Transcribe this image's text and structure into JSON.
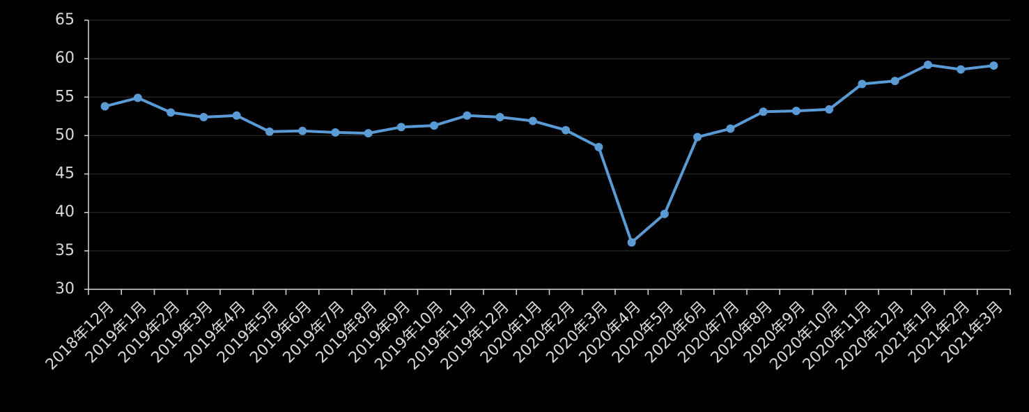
{
  "chart_data": {
    "type": "line",
    "categories": [
      "2018年12月",
      "2019年1月",
      "2019年2月",
      "2019年3月",
      "2019年4月",
      "2019年5月",
      "2019年6月",
      "2019年7月",
      "2019年8月",
      "2019年9月",
      "2019年10月",
      "2019年11月",
      "2019年12月",
      "2020年1月",
      "2020年2月",
      "2020年3月",
      "2020年4月",
      "2020年5月",
      "2020年6月",
      "2020年7月",
      "2020年8月",
      "2020年9月",
      "2020年10月",
      "2020年11月",
      "2020年12月",
      "2021年1月",
      "2021年2月",
      "2021年3月"
    ],
    "values": [
      53.8,
      54.9,
      53.0,
      52.4,
      52.6,
      50.5,
      50.6,
      50.4,
      50.3,
      51.1,
      51.3,
      52.6,
      52.4,
      51.9,
      50.7,
      48.5,
      36.1,
      39.8,
      49.8,
      50.9,
      53.1,
      53.2,
      53.4,
      56.7,
      57.1,
      59.2,
      58.6,
      59.1
    ],
    "color": "#5b9bd5",
    "ylim": [
      30,
      65
    ],
    "yticks": [
      30,
      35,
      40,
      45,
      50,
      55,
      60,
      65
    ],
    "grid": true
  }
}
